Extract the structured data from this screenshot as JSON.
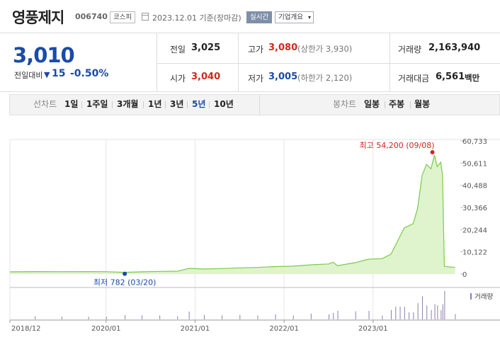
{
  "header": {
    "stock_name": "영풍제지",
    "stock_code": "006740",
    "market_badge": "코스피",
    "date_text": "2023.12.01 기준(장마감)",
    "realtime_badge": "실시간",
    "company_info_button": "기업개요",
    "company_info_arrow": "▾"
  },
  "price_panel": {
    "current_price": "3,010",
    "change_label": "전일대비",
    "change_direction": "▼",
    "change_value": "15",
    "change_percent": "-0.50%",
    "prev_close_label": "전일",
    "prev_close": "3,025",
    "high_label": "고가",
    "high": "3,080",
    "upper_limit": "(상한가 3,930)",
    "volume_label": "거래량",
    "volume": "2,163,940",
    "open_label": "시가",
    "open": "3,040",
    "low_label": "저가",
    "low": "3,005",
    "lower_limit": "(하한가 2,120)",
    "trade_value_label": "거래대금",
    "trade_value": "6,561",
    "trade_value_unit": "백만"
  },
  "tabs": {
    "line_chart_label": "선차트",
    "periods": [
      "1일",
      "1주일",
      "3개월",
      "1년",
      "3년",
      "5년",
      "10년"
    ],
    "selected_period": "5년",
    "candle_chart_label": "봉차트",
    "candle_periods": [
      "일봉",
      "주봉",
      "월봉"
    ]
  },
  "colors": {
    "up": "#d0281e",
    "down": "#1b4ba7",
    "line": "#7acb4a",
    "fill": "#dff3cc",
    "volume": "#8a7fb0"
  },
  "chart_data": {
    "type": "area",
    "ylim": [
      0,
      60733
    ],
    "y_ticks": [
      "60,733",
      "50,611",
      "40,488",
      "30,366",
      "20,244",
      "10,122",
      "0"
    ],
    "x_ticks": [
      "2018/12",
      "2020/01",
      "2021/01",
      "2022/01",
      "2023/01"
    ],
    "max_label": "최고 54,200 (09/08)",
    "min_label": "최저 782 (03/20)",
    "volume_label": "거래량",
    "series": [
      {
        "values": [
          [
            2018.92,
            1000
          ],
          [
            2019.2,
            1100
          ],
          [
            2019.5,
            1050
          ],
          [
            2019.8,
            1100
          ],
          [
            2020.0,
            1050
          ],
          [
            2020.21,
            782
          ],
          [
            2020.4,
            1000
          ],
          [
            2020.6,
            1200
          ],
          [
            2020.8,
            1300
          ],
          [
            2020.93,
            2600
          ],
          [
            2021.1,
            2300
          ],
          [
            2021.3,
            2500
          ],
          [
            2021.5,
            2800
          ],
          [
            2021.7,
            3000
          ],
          [
            2021.9,
            3400
          ],
          [
            2022.1,
            3600
          ],
          [
            2022.3,
            4200
          ],
          [
            2022.5,
            4600
          ],
          [
            2022.55,
            5400
          ],
          [
            2022.6,
            3800
          ],
          [
            2022.8,
            5200
          ],
          [
            2022.95,
            6800
          ],
          [
            2023.1,
            7000
          ],
          [
            2023.2,
            9000
          ],
          [
            2023.25,
            13000
          ],
          [
            2023.3,
            17000
          ],
          [
            2023.35,
            21000
          ],
          [
            2023.4,
            22000
          ],
          [
            2023.45,
            23000
          ],
          [
            2023.5,
            30000
          ],
          [
            2023.55,
            45000
          ],
          [
            2023.6,
            50000
          ],
          [
            2023.65,
            48000
          ],
          [
            2023.69,
            54200
          ],
          [
            2023.72,
            49000
          ],
          [
            2023.76,
            51000
          ],
          [
            2023.78,
            45000
          ],
          [
            2023.8,
            3500
          ],
          [
            2023.92,
            3010
          ]
        ]
      }
    ]
  }
}
